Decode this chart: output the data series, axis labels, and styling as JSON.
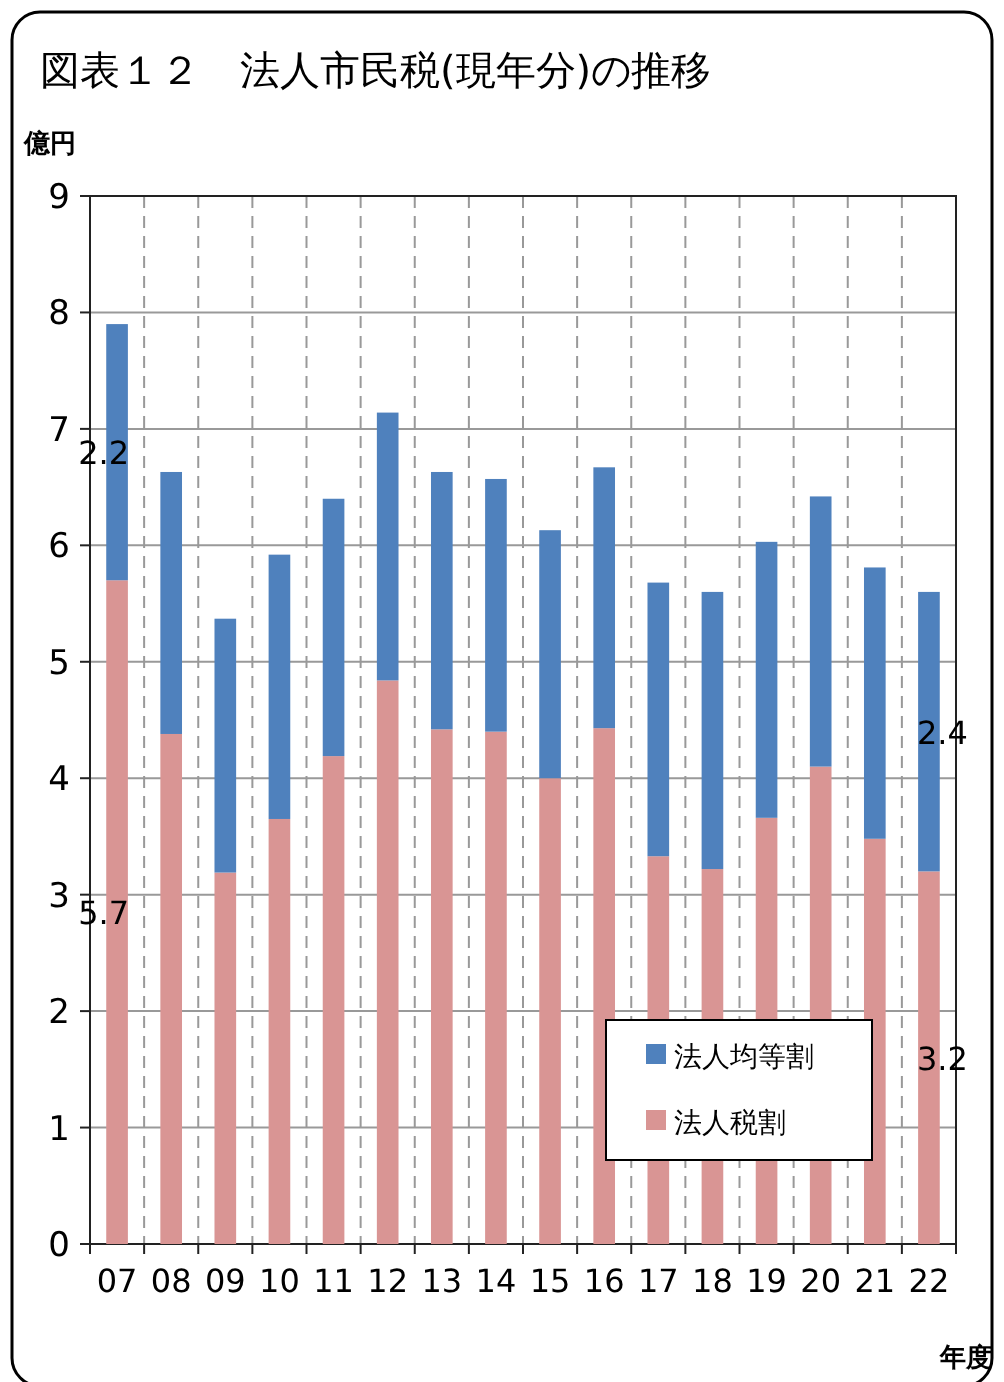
{
  "chart_data": {
    "type": "bar",
    "title": "図表１２　法人市民税(現年分)の推移",
    "ylabel": "億円",
    "xlabel": "年度",
    "categories": [
      "07",
      "08",
      "09",
      "10",
      "11",
      "12",
      "13",
      "14",
      "15",
      "16",
      "17",
      "18",
      "19",
      "20",
      "21",
      "22"
    ],
    "stacked": true,
    "ylim": [
      0,
      9
    ],
    "yticks": [
      0,
      1,
      2,
      3,
      4,
      5,
      6,
      7,
      8,
      9
    ],
    "grid": true,
    "legend": "bottom right",
    "series": [
      {
        "name": "法人税割",
        "color": "#d99594",
        "values": [
          5.7,
          4.38,
          3.19,
          3.65,
          4.19,
          4.84,
          4.42,
          4.4,
          4.0,
          4.43,
          3.33,
          3.22,
          3.66,
          4.1,
          3.48,
          3.2
        ],
        "value_labels": [
          "5.7",
          null,
          null,
          null,
          null,
          null,
          null,
          null,
          null,
          null,
          null,
          null,
          null,
          null,
          null,
          "3.2"
        ]
      },
      {
        "name": "法人均等割",
        "color": "#4f81bd",
        "values": [
          2.2,
          2.25,
          2.18,
          2.27,
          2.21,
          2.3,
          2.21,
          2.17,
          2.13,
          2.24,
          2.35,
          2.38,
          2.37,
          2.32,
          2.33,
          2.4
        ],
        "value_labels": [
          "2.2",
          null,
          null,
          null,
          null,
          null,
          null,
          null,
          null,
          null,
          null,
          null,
          null,
          null,
          null,
          "2.4"
        ]
      }
    ]
  }
}
